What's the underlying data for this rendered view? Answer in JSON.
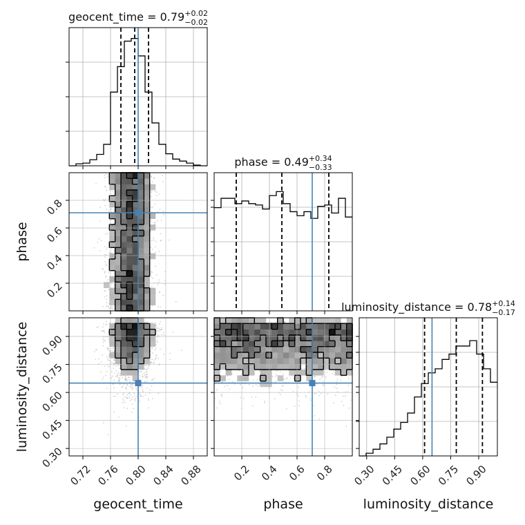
{
  "chart_data": {
    "type": "corner",
    "truth_color": "#4682b4",
    "params": [
      {
        "name": "geocent_time",
        "xlabel": "geocent_time",
        "title": {
          "prefix": "geocent_time = ",
          "value": "0.79",
          "plus": "+0.02",
          "minus": "−0.02"
        },
        "range": [
          0.7,
          0.9
        ],
        "ticks": [
          0.72,
          0.76,
          0.8,
          0.84,
          0.88
        ],
        "tick_labels": [
          "0.72",
          "0.76",
          "0.80",
          "0.84",
          "0.88"
        ],
        "truth": 0.8,
        "quantiles": [
          0.775,
          0.795,
          0.815
        ],
        "hist": {
          "edges": [
            0.7,
            0.71,
            0.72,
            0.73,
            0.74,
            0.75,
            0.76,
            0.77,
            0.78,
            0.79,
            0.8,
            0.81,
            0.82,
            0.83,
            0.84,
            0.85,
            0.86,
            0.87,
            0.88,
            0.89,
            0.9
          ],
          "counts": [
            0.0,
            0.015,
            0.02,
            0.045,
            0.085,
            0.16,
            0.55,
            0.74,
            0.93,
            0.95,
            0.82,
            0.55,
            0.32,
            0.16,
            0.09,
            0.05,
            0.035,
            0.02,
            0.005,
            0.0
          ]
        }
      },
      {
        "name": "phase",
        "xlabel": "phase",
        "ylabel": "phase",
        "title": {
          "prefix": "phase = ",
          "value": "0.49",
          "plus": "+0.34",
          "minus": "−0.33"
        },
        "range": [
          0.0,
          1.0
        ],
        "ticks": [
          0.2,
          0.4,
          0.6,
          0.8
        ],
        "tick_labels": [
          "0.2",
          "0.4",
          "0.6",
          "0.8"
        ],
        "truth": 0.71,
        "quantiles": [
          0.16,
          0.49,
          0.83
        ],
        "hist": {
          "edges": [
            0.0,
            0.05,
            0.1,
            0.15,
            0.2,
            0.25,
            0.3,
            0.35,
            0.4,
            0.45,
            0.5,
            0.55,
            0.6,
            0.65,
            0.7,
            0.75,
            0.8,
            0.85,
            0.9,
            0.95,
            1.0
          ],
          "counts": [
            0.77,
            0.84,
            0.84,
            0.8,
            0.82,
            0.8,
            0.79,
            0.76,
            0.86,
            0.89,
            0.8,
            0.74,
            0.71,
            0.74,
            0.69,
            0.78,
            0.79,
            0.73,
            0.84,
            0.7
          ]
        }
      },
      {
        "name": "luminosity_distance",
        "xlabel": "luminosity_distance",
        "ylabel": "luminosity_distance",
        "title": {
          "prefix": "luminosity_distance = ",
          "value": "0.78",
          "plus": "+0.14",
          "minus": "−0.17"
        },
        "range": [
          0.26,
          1.0
        ],
        "ticks": [
          0.3,
          0.45,
          0.6,
          0.75,
          0.9
        ],
        "tick_labels": [
          "0.30",
          "0.45",
          "0.60",
          "0.75",
          "0.90"
        ],
        "truth": 0.65,
        "quantiles": [
          0.61,
          0.78,
          0.92
        ],
        "hist": {
          "edges": [
            0.26,
            0.297,
            0.334,
            0.371,
            0.408,
            0.445,
            0.482,
            0.519,
            0.556,
            0.593,
            0.63,
            0.667,
            0.704,
            0.741,
            0.778,
            0.815,
            0.852,
            0.889,
            0.926,
            0.963,
            1.0
          ],
          "counts": [
            0.0,
            0.02,
            0.05,
            0.09,
            0.14,
            0.2,
            0.25,
            0.32,
            0.44,
            0.54,
            0.62,
            0.65,
            0.72,
            0.76,
            0.82,
            0.82,
            0.86,
            0.76,
            0.65,
            0.55
          ]
        }
      }
    ]
  }
}
